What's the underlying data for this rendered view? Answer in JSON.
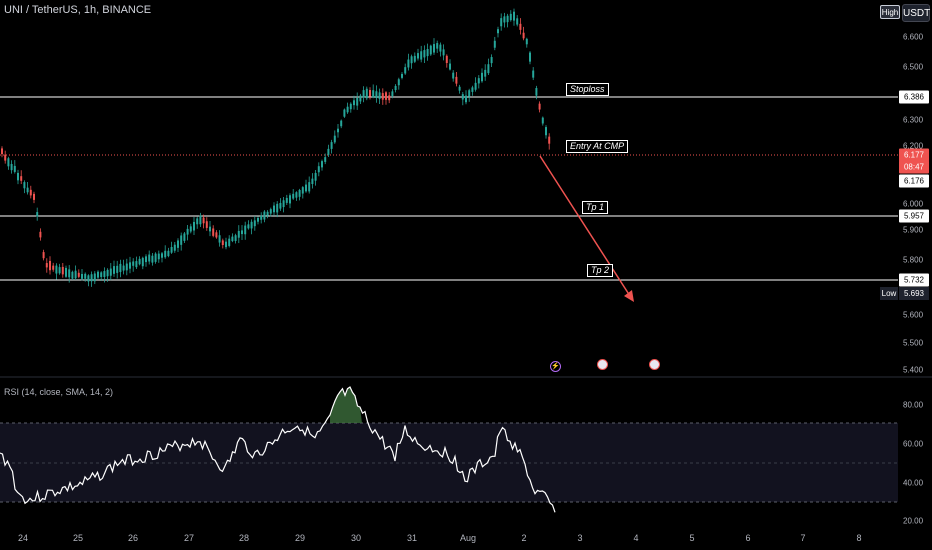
{
  "title": "UNI / TetherUS, 1h, BINANCE",
  "currency_button": "USDT",
  "high_button": "High",
  "price_axis": {
    "ticks": [
      "6.600",
      "6.500",
      "6.300",
      "6.200",
      "6.000",
      "5.900",
      "5.800",
      "5.600",
      "5.500",
      "5.400"
    ]
  },
  "badges": {
    "stoploss_price": "6.386",
    "current_price": "6.177",
    "countdown": "08:47",
    "entry_price": "6.176",
    "tp1_price": "5.957",
    "tp2_price": "5.732",
    "low_label": "Low",
    "low_price": "5.693"
  },
  "levels": {
    "stoploss": "Stoploss",
    "entry": "Entry At CMP",
    "tp1": "Tp 1",
    "tp2": "Tp 2"
  },
  "rsi": {
    "label": "RSI (14, close, SMA, 14, 2)",
    "ticks": [
      "80.00",
      "60.00",
      "40.00",
      "20.00"
    ],
    "upper_band": 70,
    "lower_band": 30
  },
  "time_axis": {
    "ticks": [
      "24",
      "25",
      "26",
      "27",
      "28",
      "29",
      "30",
      "31",
      "Aug",
      "2",
      "3",
      "4",
      "5",
      "6",
      "7",
      "8"
    ]
  },
  "colors": {
    "up": "#26a69a",
    "down": "#ef5350",
    "arrow": "#ef5350",
    "rsi_line": "#ffffff",
    "rsi_band": "#1a1a2e"
  },
  "events": [
    {
      "icon": "lightning-icon"
    },
    {
      "icon": "us-flag-icon"
    },
    {
      "icon": "us-flag-icon"
    }
  ]
}
